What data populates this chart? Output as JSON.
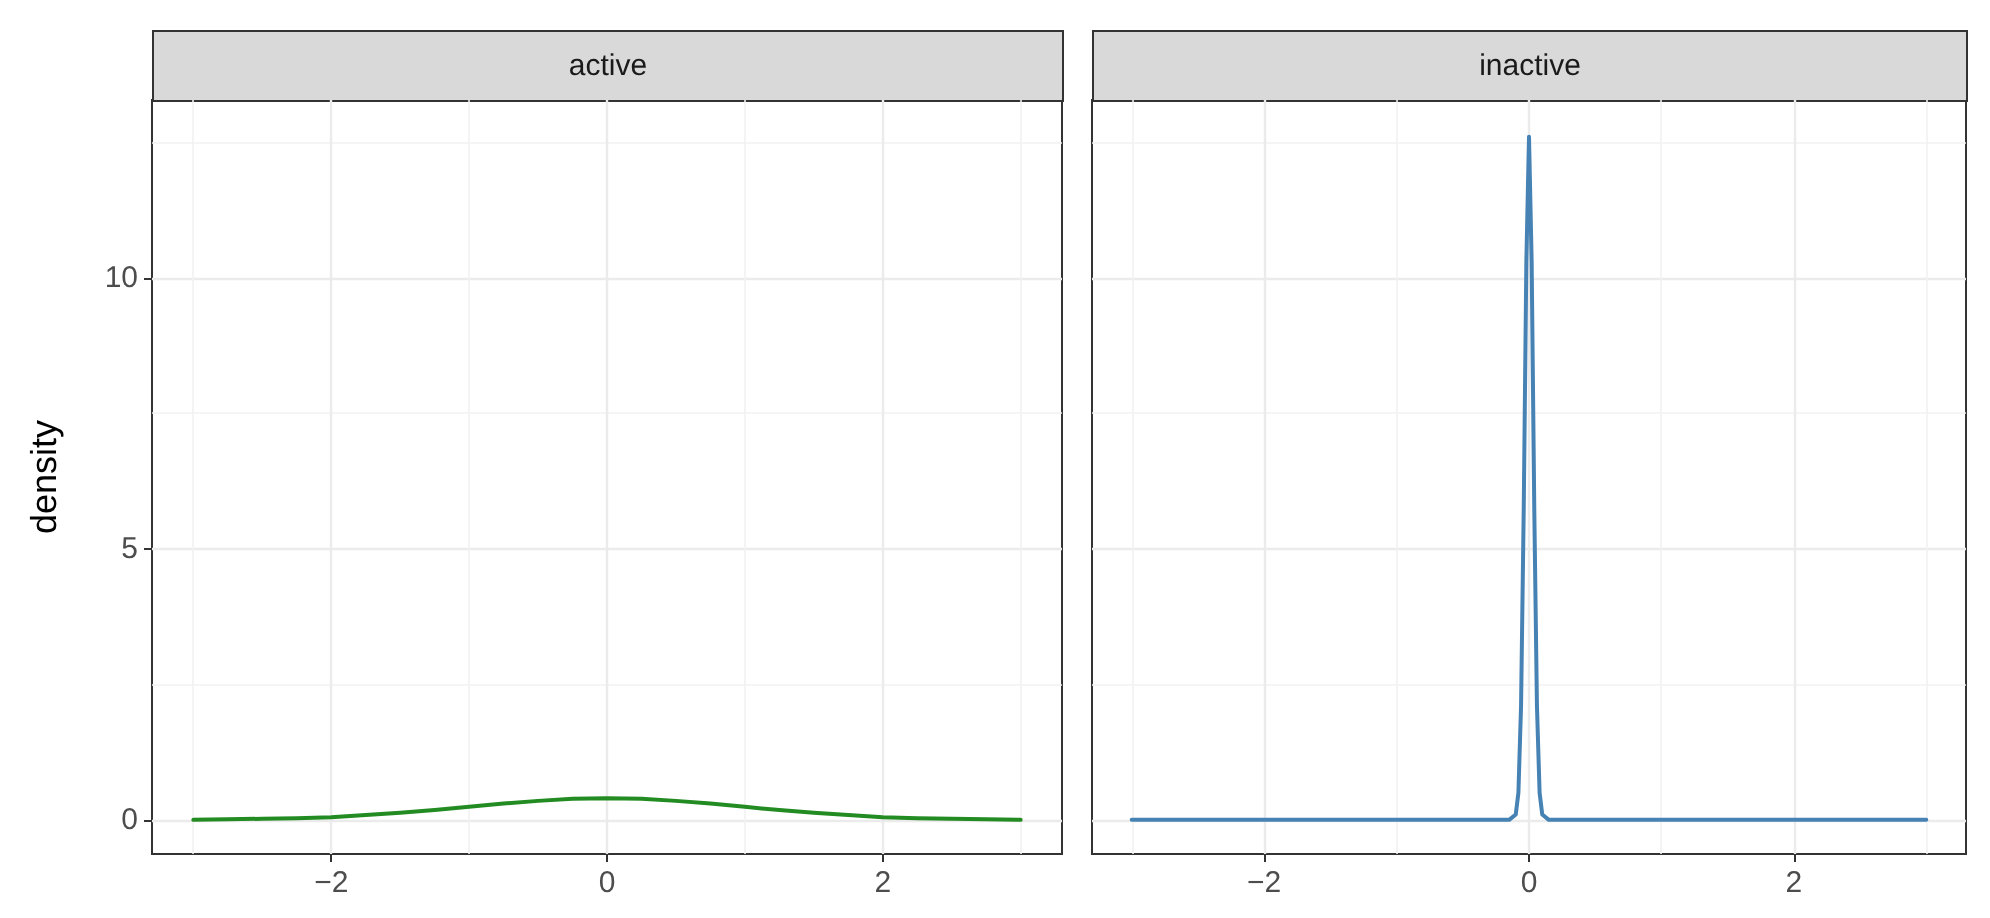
{
  "chart_data": [
    {
      "type": "line",
      "title": "active",
      "ylabel": "density",
      "grid": true,
      "marker": "none",
      "line_style": "solid",
      "xlim": [
        -3.3,
        3.3
      ],
      "ylim": [
        -0.63,
        13.28
      ],
      "xticks": [
        {
          "value": -3,
          "label": null
        },
        -2,
        {
          "value": -1,
          "label": null
        },
        0,
        {
          "value": 1,
          "label": null
        },
        2,
        {
          "value": 3,
          "label": null
        }
      ],
      "yticks": [
        0,
        {
          "value": 2.5,
          "label": null
        },
        5,
        {
          "value": 7.5,
          "label": null
        },
        10,
        {
          "value": 12.5,
          "label": null
        }
      ],
      "series": [
        {
          "color": "#228b22",
          "x": [
            -3,
            -2.75,
            -2.5,
            -2.25,
            -2,
            -1.75,
            -1.5,
            -1.25,
            -1,
            -0.75,
            -0.5,
            -0.25,
            0,
            0.25,
            0.5,
            0.75,
            1,
            1.25,
            1.5,
            1.75,
            2,
            2.25,
            2.5,
            2.75,
            3
          ],
          "values": [
            0,
            0.01,
            0.02,
            0.03,
            0.05,
            0.09,
            0.13,
            0.18,
            0.24,
            0.3,
            0.35,
            0.39,
            0.4,
            0.39,
            0.35,
            0.3,
            0.24,
            0.18,
            0.13,
            0.09,
            0.05,
            0.03,
            0.02,
            0.01,
            0
          ]
        }
      ]
    },
    {
      "type": "line",
      "title": "inactive",
      "grid": true,
      "marker": "none",
      "line_style": "solid",
      "tick_labels": "x",
      "xlim": [
        -3.3,
        3.3
      ],
      "ylim": [
        -0.63,
        13.28
      ],
      "xticks": [
        {
          "value": -3,
          "label": null
        },
        -2,
        {
          "value": -1,
          "label": null
        },
        0,
        {
          "value": 1,
          "label": null
        },
        2,
        {
          "value": 3,
          "label": null
        }
      ],
      "yticks": [
        0,
        {
          "value": 2.5,
          "label": null
        },
        5,
        {
          "value": 7.5,
          "label": null
        },
        10,
        {
          "value": 12.5,
          "label": null
        }
      ],
      "series": [
        {
          "color": "#4682b4",
          "x": [
            -3,
            -0.2,
            -0.15,
            -0.1,
            -0.08,
            -0.06,
            -0.04,
            -0.02,
            0,
            0.02,
            0.04,
            0.06,
            0.08,
            0.1,
            0.15,
            0.2,
            3
          ],
          "values": [
            0,
            0,
            0,
            0.1,
            0.5,
            2.1,
            5.7,
            10.3,
            12.6,
            10.3,
            5.7,
            2.1,
            0.5,
            0.1,
            0,
            0,
            0
          ]
        }
      ]
    }
  ]
}
